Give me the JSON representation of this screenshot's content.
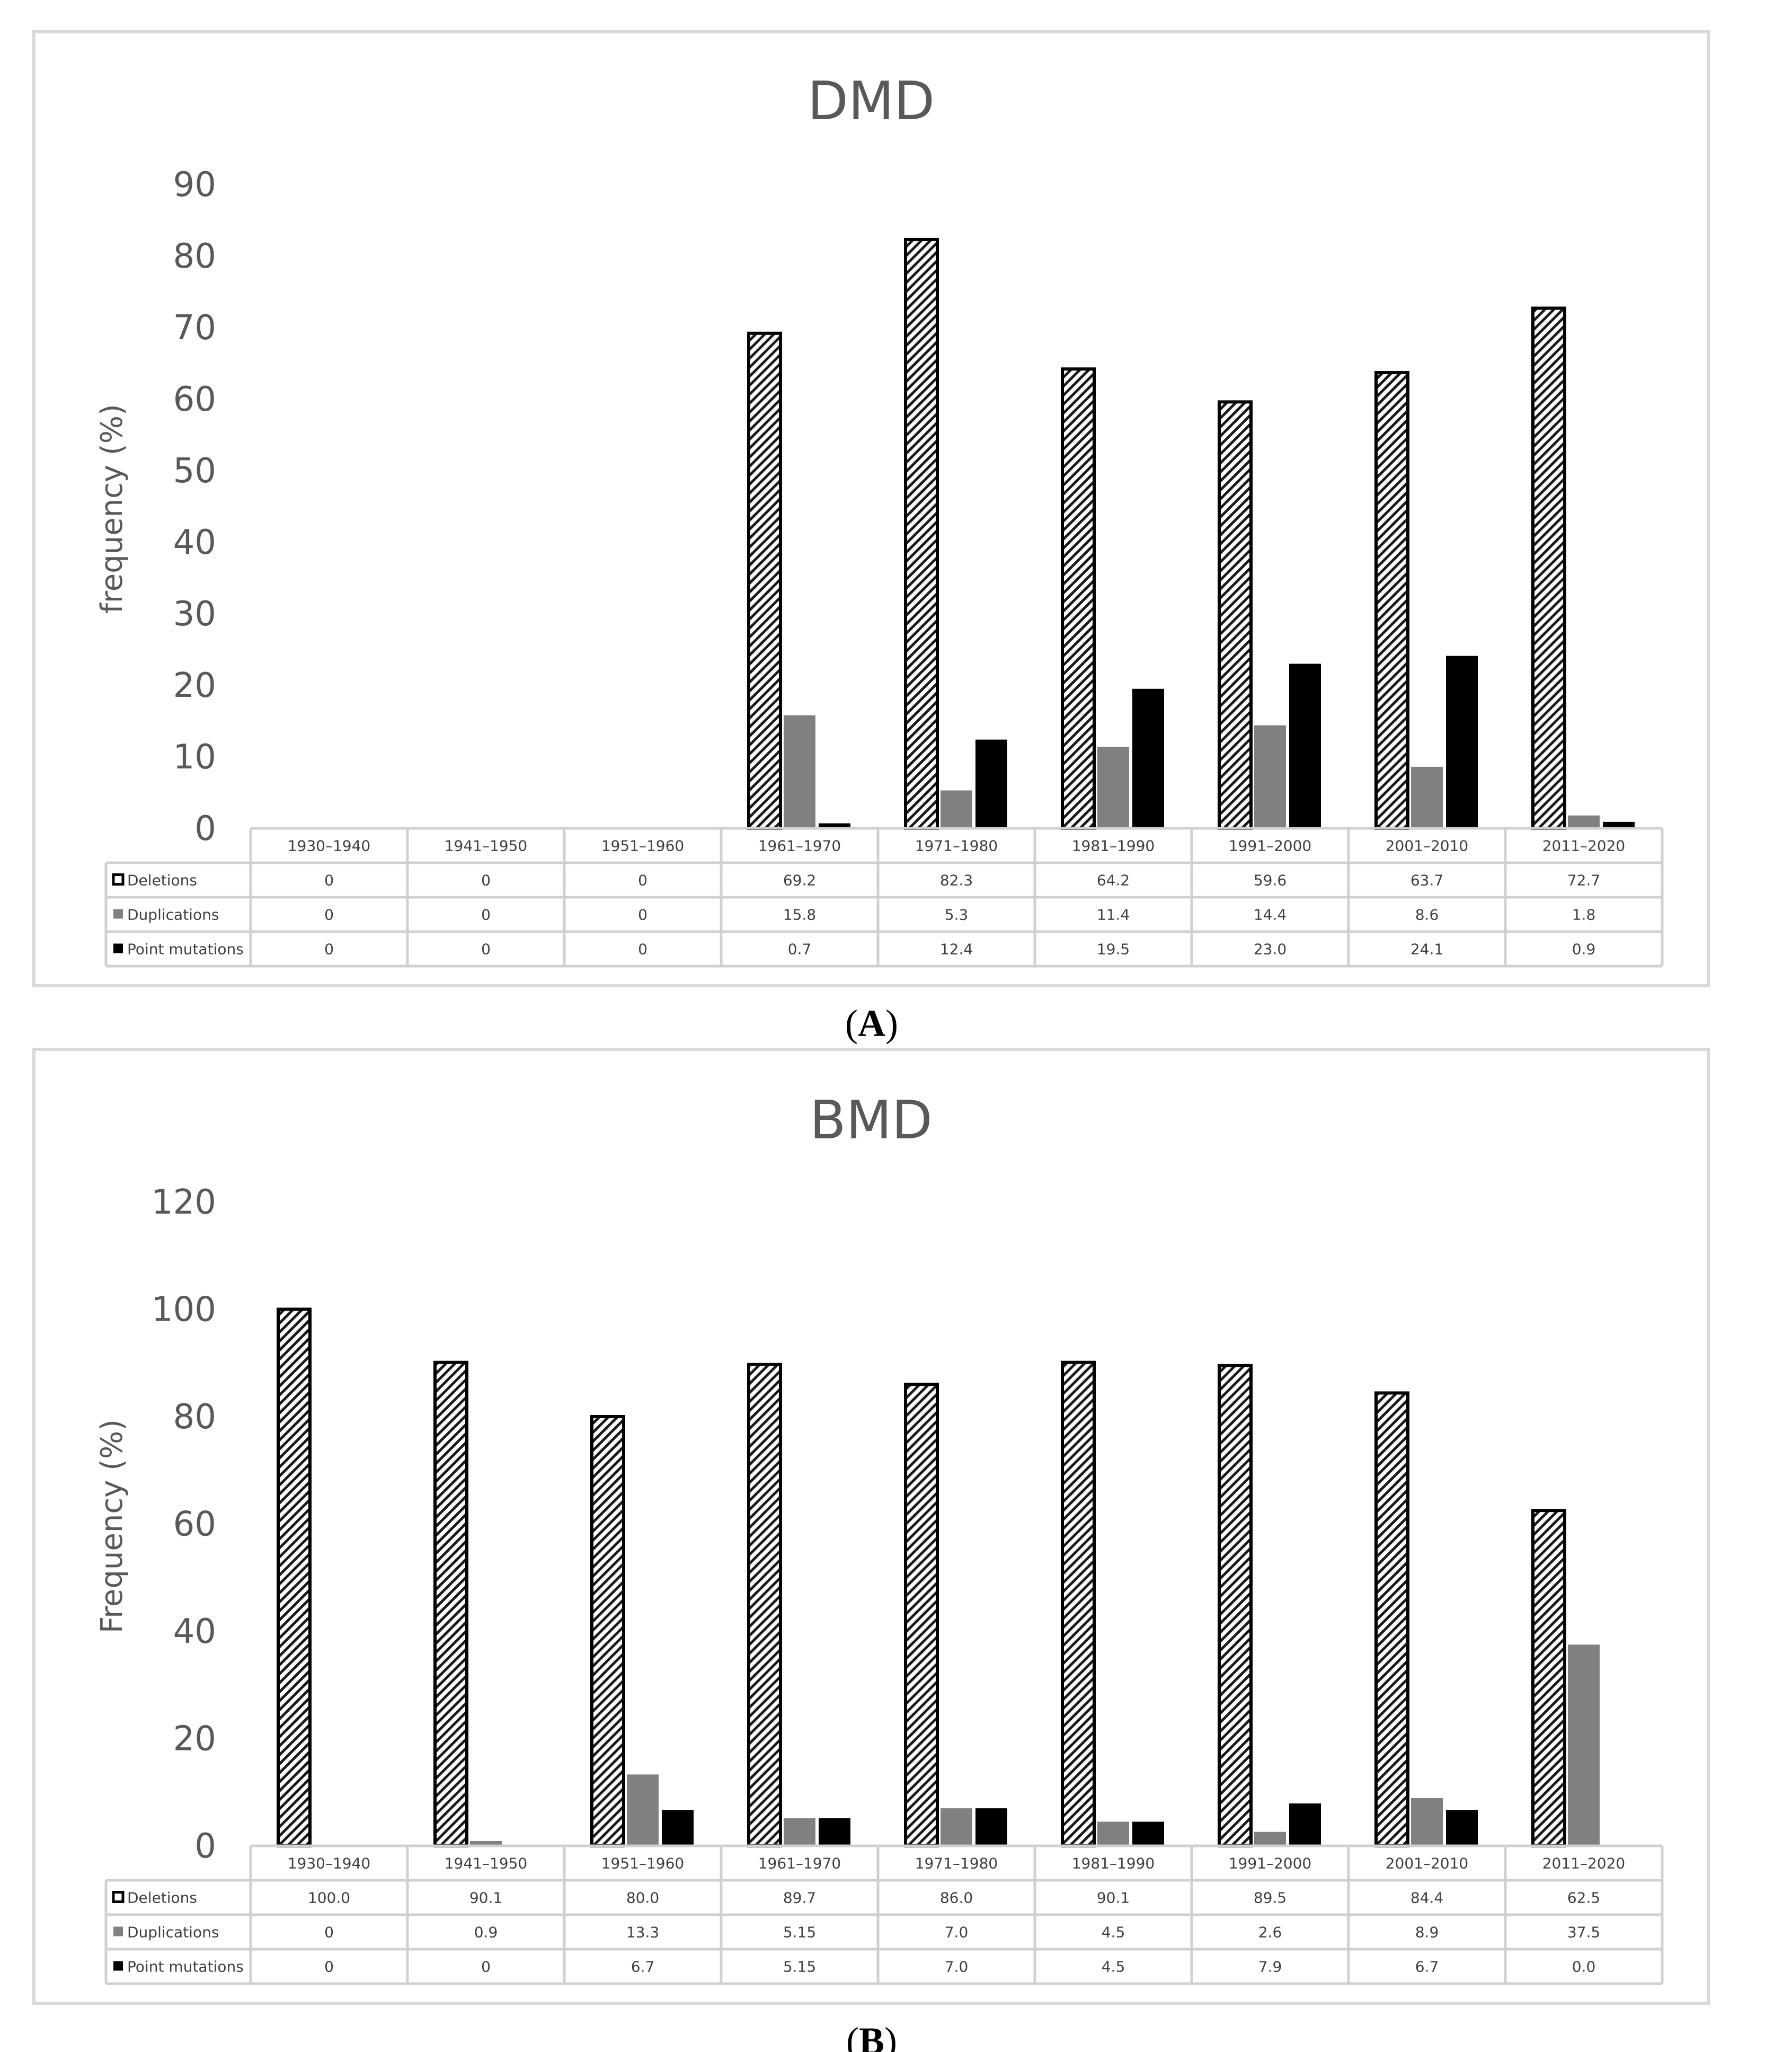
{
  "chart_data": [
    {
      "type": "bar",
      "title": "DMD",
      "panel_label": "A",
      "ylabel": "frequency (%)",
      "ylim": [
        0,
        90
      ],
      "yticks": [
        0,
        10,
        20,
        30,
        40,
        50,
        60,
        70,
        80,
        90
      ],
      "categories": [
        "1930–1940",
        "1941–1950",
        "1951–1960",
        "1961–1970",
        "1971–1980",
        "1981–1990",
        "1991–2000",
        "2001–2010",
        "2011–2020"
      ],
      "series": [
        {
          "name": "Deletions",
          "style": "hatched",
          "values": [
            0,
            0,
            0,
            69.2,
            82.3,
            64.2,
            59.6,
            63.7,
            72.7
          ],
          "labels": [
            "0",
            "0",
            "0",
            "69.2",
            "82.3",
            "64.2",
            "59.6",
            "63.7",
            "72.7"
          ]
        },
        {
          "name": "Duplications",
          "style": "gray",
          "values": [
            0,
            0,
            0,
            15.8,
            5.3,
            11.4,
            14.4,
            8.6,
            1.8
          ],
          "labels": [
            "0",
            "0",
            "0",
            "15.8",
            "5.3",
            "11.4",
            "14.4",
            "8.6",
            "1.8"
          ]
        },
        {
          "name": "Point mutations",
          "style": "black",
          "values": [
            0,
            0,
            0,
            0.7,
            12.4,
            19.5,
            23.0,
            24.1,
            0.9
          ],
          "labels": [
            "0",
            "0",
            "0",
            "0.7",
            "12.4",
            "19.5",
            "23.0",
            "24.1",
            "0.9"
          ]
        }
      ]
    },
    {
      "type": "bar",
      "title": "BMD",
      "panel_label": "B",
      "ylabel": "Frequency (%)",
      "ylim": [
        0,
        120
      ],
      "yticks": [
        0,
        20,
        40,
        60,
        80,
        100,
        120
      ],
      "categories": [
        "1930–1940",
        "1941–1950",
        "1951–1960",
        "1961–1970",
        "1971–1980",
        "1981–1990",
        "1991–2000",
        "2001–2010",
        "2011–2020"
      ],
      "series": [
        {
          "name": "Deletions",
          "style": "hatched",
          "values": [
            100.0,
            90.1,
            80.0,
            89.7,
            86.0,
            90.1,
            89.5,
            84.4,
            62.5
          ],
          "labels": [
            "100.0",
            "90.1",
            "80.0",
            "89.7",
            "86.0",
            "90.1",
            "89.5",
            "84.4",
            "62.5"
          ]
        },
        {
          "name": "Duplications",
          "style": "gray",
          "values": [
            0,
            0.9,
            13.3,
            5.15,
            7.0,
            4.5,
            2.6,
            8.9,
            37.5
          ],
          "labels": [
            "0",
            "0.9",
            "13.3",
            "5.15",
            "7.0",
            "4.5",
            "2.6",
            "8.9",
            "37.5"
          ]
        },
        {
          "name": "Point mutations",
          "style": "black",
          "values": [
            0,
            0,
            6.7,
            5.15,
            7.0,
            4.5,
            7.9,
            6.7,
            0.0
          ],
          "labels": [
            "0",
            "0",
            "6.7",
            "5.15",
            "7.0",
            "4.5",
            "7.9",
            "6.7",
            "0.0"
          ]
        }
      ]
    }
  ]
}
